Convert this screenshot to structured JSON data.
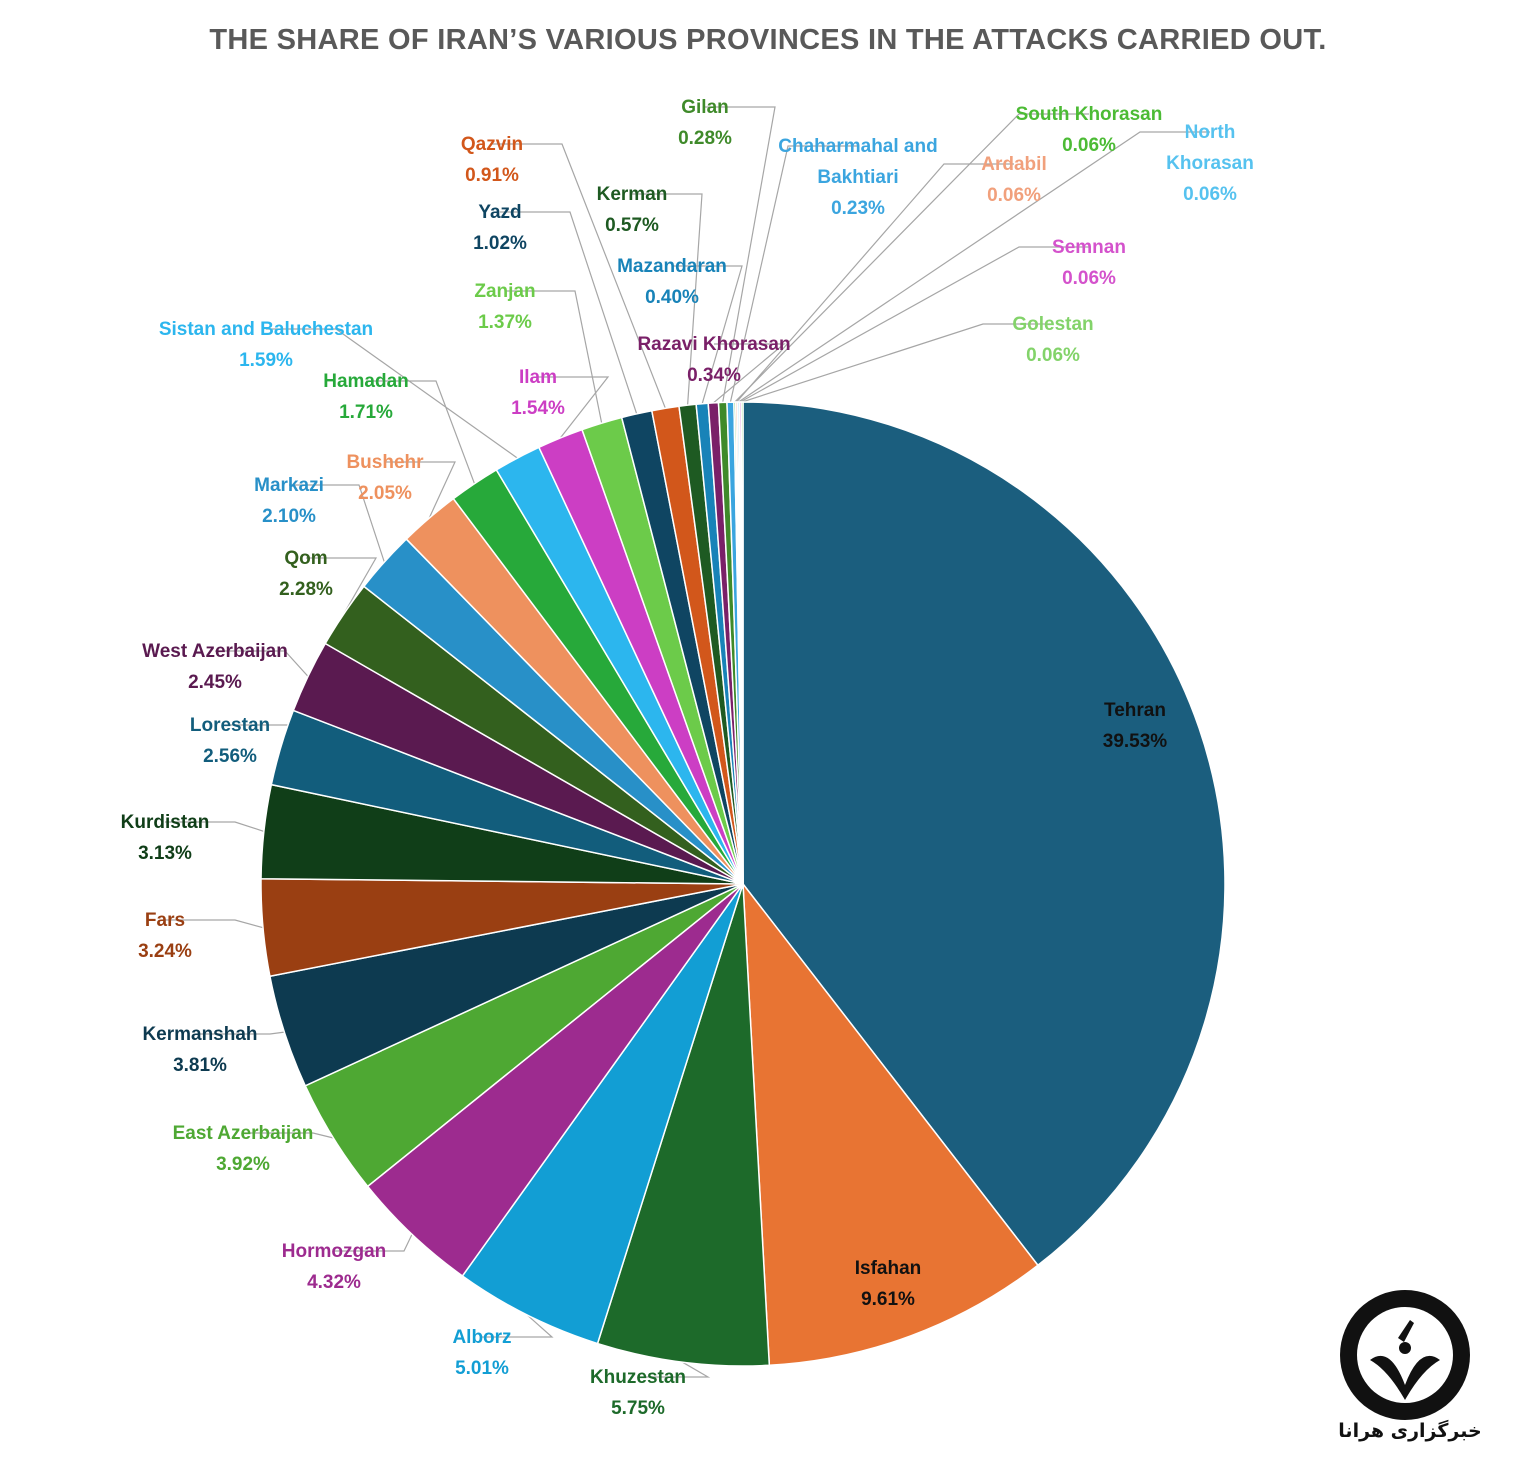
{
  "chart_data": {
    "type": "pie",
    "title": "THE SHARE OF IRAN’S VARIOUS PROVINCES IN THE ATTACKS CARRIED OUT.",
    "unit": "%",
    "slices": [
      {
        "name": "Tehran",
        "value": 39.53,
        "label": "39.53%",
        "color": "#1b5e7e",
        "text_color": "#111111"
      },
      {
        "name": "Isfahan",
        "value": 9.61,
        "label": "9.61%",
        "color": "#e87433",
        "text_color": "#111111"
      },
      {
        "name": "Khuzestan",
        "value": 5.75,
        "label": "5.75%",
        "color": "#1d6a2a",
        "text_color": "#1d6a2a"
      },
      {
        "name": "Alborz",
        "value": 5.01,
        "label": "5.01%",
        "color": "#129ed4",
        "text_color": "#129ed4"
      },
      {
        "name": "Hormozgan",
        "value": 4.32,
        "label": "4.32%",
        "color": "#9d2b8f",
        "text_color": "#9d2b8f"
      },
      {
        "name": "East Azerbaijan",
        "value": 3.92,
        "label": "3.92%",
        "color": "#4ea833",
        "text_color": "#4ea833"
      },
      {
        "name": "Kermanshah",
        "value": 3.81,
        "label": "3.81%",
        "color": "#0d3a50",
        "text_color": "#0d3a50"
      },
      {
        "name": "Fars",
        "value": 3.24,
        "label": "3.24%",
        "color": "#9a3f12",
        "text_color": "#9a3f12"
      },
      {
        "name": "Kurdistan",
        "value": 3.13,
        "label": "3.13%",
        "color": "#103e18",
        "text_color": "#103e18"
      },
      {
        "name": "Lorestan",
        "value": 2.56,
        "label": "2.56%",
        "color": "#125d7c",
        "text_color": "#125d7c"
      },
      {
        "name": "West Azerbaijan",
        "value": 2.45,
        "label": "2.45%",
        "color": "#5a1a50",
        "text_color": "#5a1a50"
      },
      {
        "name": "Qom",
        "value": 2.28,
        "label": "2.28%",
        "color": "#33601e",
        "text_color": "#33601e"
      },
      {
        "name": "Markazi",
        "value": 2.1,
        "label": "2.10%",
        "color": "#2890c8",
        "text_color": "#2890c8"
      },
      {
        "name": "Bushehr",
        "value": 2.05,
        "label": "2.05%",
        "color": "#ee915e",
        "text_color": "#ee915e"
      },
      {
        "name": "Hamadan",
        "value": 1.71,
        "label": "1.71%",
        "color": "#27a93a",
        "text_color": "#27a93a"
      },
      {
        "name": "Sistan and Baluchestan",
        "value": 1.59,
        "label": "1.59%",
        "color": "#2cb6ee",
        "text_color": "#2cb6ee"
      },
      {
        "name": "Ilam",
        "value": 1.54,
        "label": "1.54%",
        "color": "#cc3ec4",
        "text_color": "#cc3ec4"
      },
      {
        "name": "Zanjan",
        "value": 1.37,
        "label": "1.37%",
        "color": "#6ccb4a",
        "text_color": "#6ccb4a"
      },
      {
        "name": "Yazd",
        "value": 1.02,
        "label": "1.02%",
        "color": "#0f4562",
        "text_color": "#0f4562"
      },
      {
        "name": "Qazvin",
        "value": 0.91,
        "label": "0.91%",
        "color": "#d2571b",
        "text_color": "#d2571b"
      },
      {
        "name": "Kerman",
        "value": 0.57,
        "label": "0.57%",
        "color": "#1e5a22",
        "text_color": "#1e5a22"
      },
      {
        "name": "Mazandaran",
        "value": 0.4,
        "label": "0.40%",
        "color": "#1883b8",
        "text_color": "#1883b8"
      },
      {
        "name": "Razavi Khorasan",
        "value": 0.34,
        "label": "0.34%",
        "color": "#7a2068",
        "text_color": "#7a2068"
      },
      {
        "name": "Gilan",
        "value": 0.28,
        "label": "0.28%",
        "color": "#3f8a2a",
        "text_color": "#3f8a2a"
      },
      {
        "name": "Chaharmahal and Bakhtiari",
        "value": 0.23,
        "label": "0.23%",
        "color": "#3ba5df",
        "text_color": "#3ba5df"
      },
      {
        "name": "South Khorasan",
        "value": 0.06,
        "label": "0.06%",
        "color": "#4cbb35",
        "text_color": "#4cbb35"
      },
      {
        "name": "Ardabil",
        "value": 0.06,
        "label": "0.06%",
        "color": "#f1a07c",
        "text_color": "#f1a07c"
      },
      {
        "name": "North Khorasan",
        "value": 0.06,
        "label": "0.06%",
        "color": "#56c2ef",
        "text_color": "#56c2ef"
      },
      {
        "name": "Semnan",
        "value": 0.06,
        "label": "0.06%",
        "color": "#d452cc",
        "text_color": "#d452cc"
      },
      {
        "name": "Golestan",
        "value": 0.06,
        "label": "0.06%",
        "color": "#83d36a",
        "text_color": "#83d36a"
      }
    ]
  },
  "logo": {
    "name": "HUMAN RIGHTS ACTIVISTS IN IRAN",
    "caption": "خبرگزاری هرانا"
  }
}
